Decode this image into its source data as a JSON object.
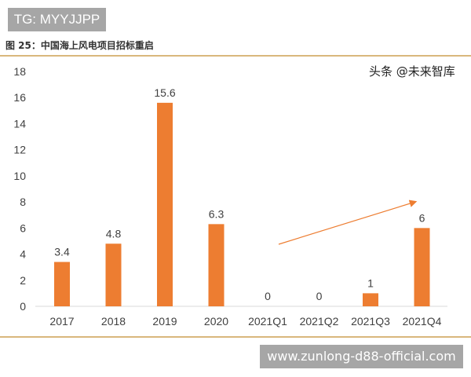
{
  "tag": "TG: MYYJJPP",
  "title": "图 25：中国海上风电项目招标重启",
  "watermark": "头条 @未来智库",
  "url_banner": "www.zunlong-d88-official.com",
  "chart_data": {
    "type": "bar",
    "categories": [
      "2017",
      "2018",
      "2019",
      "2020",
      "2021Q1",
      "2021Q2",
      "2021Q3",
      "2021Q4"
    ],
    "values": [
      3.4,
      4.8,
      15.6,
      6.3,
      0,
      0,
      1,
      6
    ],
    "data_labels": [
      "3.4",
      "4.8",
      "15.6",
      "6.3",
      "0",
      "0",
      "1",
      "6"
    ],
    "yticks": [
      "0",
      "2",
      "4",
      "6",
      "8",
      "10",
      "12",
      "14",
      "16",
      "18"
    ],
    "ylim": [
      0,
      18
    ],
    "grid": false,
    "bar_color": "#ed7d31",
    "annotation": "upward arrow from 2021Q1 to 2021Q4"
  }
}
